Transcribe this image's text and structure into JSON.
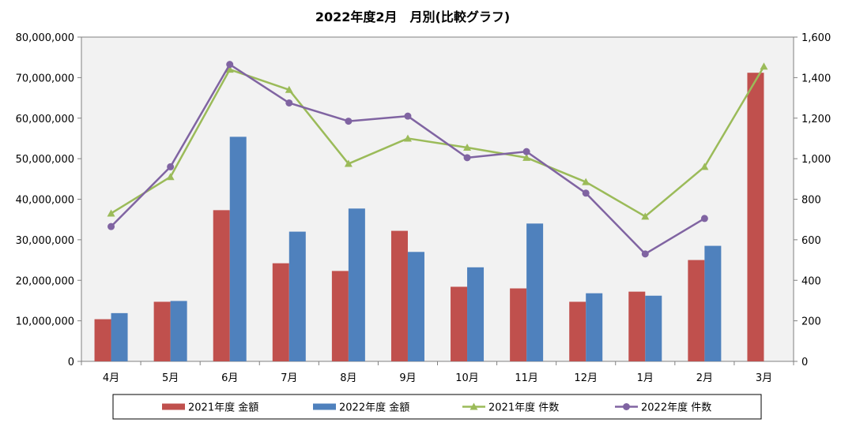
{
  "chart_data": {
    "type": "bar",
    "title": "2022年度2月　月別(比較グラフ)",
    "categories": [
      "4月",
      "5月",
      "6月",
      "7月",
      "8月",
      "9月",
      "10月",
      "11月",
      "12月",
      "1月",
      "2月",
      "3月"
    ],
    "series": [
      {
        "name": "2021年度 金額",
        "kind": "bar",
        "axis": "left",
        "color": "#c0504d",
        "values": [
          10400000,
          14700000,
          37300000,
          24200000,
          22300000,
          32200000,
          18400000,
          18000000,
          14700000,
          17200000,
          25000000,
          71200000
        ]
      },
      {
        "name": "2022年度 金額",
        "kind": "bar",
        "axis": "left",
        "color": "#4f81bd",
        "values": [
          11900000,
          14900000,
          55400000,
          32000000,
          37700000,
          27000000,
          23200000,
          34000000,
          16800000,
          16200000,
          28500000,
          null
        ]
      },
      {
        "name": "2021年度 件数",
        "kind": "line",
        "axis": "right",
        "color": "#9bbb59",
        "marker": "triangle",
        "values": [
          730,
          910,
          1440,
          1340,
          975,
          1100,
          1055,
          1005,
          885,
          715,
          960,
          1455
        ]
      },
      {
        "name": "2022年度 件数",
        "kind": "line",
        "axis": "right",
        "color": "#8064a2",
        "marker": "circle",
        "values": [
          665,
          960,
          1465,
          1275,
          1185,
          1210,
          1005,
          1035,
          830,
          530,
          705,
          null
        ]
      }
    ],
    "y_left": {
      "min": 0,
      "max": 80000000,
      "step": 10000000,
      "ticks": [
        "0",
        "10,000,000",
        "20,000,000",
        "30,000,000",
        "40,000,000",
        "50,000,000",
        "60,000,000",
        "70,000,000",
        "80,000,000"
      ]
    },
    "y_right": {
      "min": 0,
      "max": 1600,
      "step": 200,
      "ticks": [
        "0",
        "200",
        "400",
        "600",
        "800",
        "1,000",
        "1,200",
        "1,400",
        "1,600"
      ]
    },
    "plot_background": "#f2f2f2",
    "grid": false,
    "legend_position": "bottom"
  }
}
